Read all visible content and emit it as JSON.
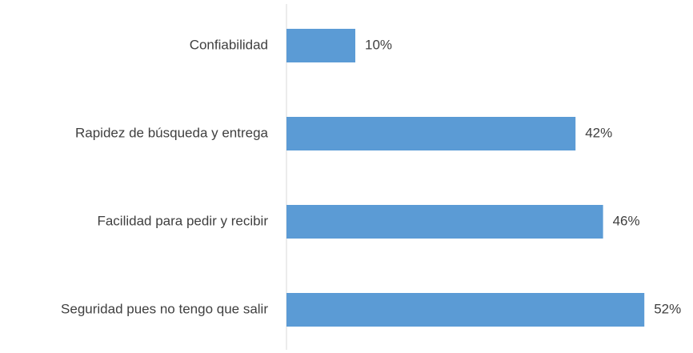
{
  "chart_data": {
    "type": "bar",
    "orientation": "horizontal",
    "categories": [
      "Confiabilidad",
      "Rapidez de búsqueda y entrega",
      "Facilidad para pedir y recibir",
      "Seguridad pues no tengo que salir"
    ],
    "values": [
      10,
      42,
      46,
      52
    ],
    "value_labels": [
      "10%",
      "42%",
      "46%",
      "52%"
    ],
    "color": "#5b9bd5"
  }
}
